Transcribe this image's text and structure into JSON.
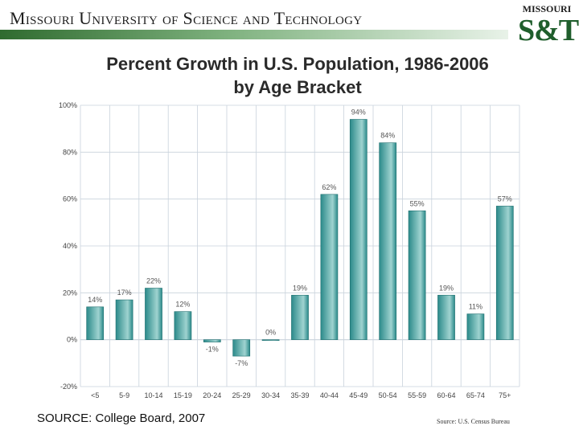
{
  "header": {
    "title": "Missouri University of Science and Technology",
    "logo_top": "MISSOURI",
    "logo_main": "S&T"
  },
  "colors": {
    "bar": "#2b8a8a",
    "bar_highlight": "#9fd3d0",
    "grid": "#c9d2dc",
    "header_green": "#2f6b2f"
  },
  "chart_data": {
    "type": "bar",
    "title": "Percent Growth in U.S. Population, 1986-2006",
    "subtitle": "by Age Bracket",
    "categories": [
      "<5",
      "5-9",
      "10-14",
      "15-19",
      "20-24",
      "25-29",
      "30-34",
      "35-39",
      "40-44",
      "45-49",
      "50-54",
      "55-59",
      "60-64",
      "65-74",
      "75+"
    ],
    "values": [
      14,
      17,
      22,
      12,
      -1,
      -7,
      0,
      19,
      62,
      94,
      84,
      55,
      19,
      11,
      57
    ],
    "data_labels": [
      "14%",
      "17%",
      "22%",
      "12%",
      "-1%",
      "-7%",
      "0%",
      "19%",
      "62%",
      "94%",
      "84%",
      "55%",
      "19%",
      "11%",
      "57%"
    ],
    "y_ticks": [
      100,
      80,
      60,
      40,
      20,
      0,
      -20
    ],
    "y_tick_labels": [
      "100%",
      "80%",
      "60%",
      "40%",
      "20%",
      "0%",
      "-20%"
    ],
    "ylim": [
      -20,
      100
    ],
    "grid": true,
    "legend": "none",
    "xlabel": "",
    "ylabel": ""
  },
  "sources": {
    "left": "SOURCE: College Board, 2007",
    "right": "Source: U.S. Census Bureau"
  }
}
